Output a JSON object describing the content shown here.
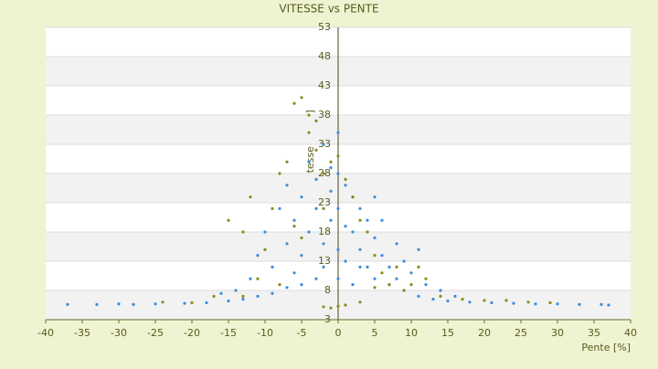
{
  "chart_data": {
    "type": "scatter",
    "title": "VITESSE vs PENTE",
    "x_label": "Pente [%]",
    "y_label": "Vitesse [km/h]",
    "xlim": [
      -40,
      40
    ],
    "xticks": [
      -40,
      -35,
      -30,
      -25,
      -20,
      -15,
      -10,
      -5,
      0,
      5,
      10,
      15,
      20,
      25,
      30,
      35,
      40
    ],
    "ylim": [
      3,
      53
    ],
    "yticks": [
      3,
      8,
      13,
      18,
      23,
      28,
      33,
      38,
      43,
      48,
      53
    ],
    "grid": true,
    "series": [
      {
        "color": "#3a8ede",
        "x": [
          -37,
          -33,
          -30,
          -28,
          -25,
          -21,
          -18,
          -15,
          -13,
          -11,
          -9,
          -7,
          -5,
          -3,
          -2,
          37,
          36,
          33,
          30,
          27,
          24,
          21,
          18,
          15,
          13,
          11,
          9,
          7,
          5,
          3,
          -14,
          -12,
          -11,
          -10,
          -9,
          -8,
          -7,
          -7,
          -6,
          -6,
          -5,
          -5,
          -4,
          -4,
          -3,
          -3,
          -2,
          -2,
          -1,
          -1,
          -1,
          0,
          0,
          0,
          0,
          0,
          1,
          1,
          1,
          2,
          2,
          2,
          3,
          3,
          4,
          4,
          5,
          5,
          6,
          6,
          7,
          8,
          8,
          9,
          10,
          11,
          12,
          14,
          -16,
          16
        ],
        "values": [
          5.6,
          5.6,
          5.7,
          5.6,
          5.7,
          5.8,
          5.9,
          6.2,
          6.5,
          7,
          7.5,
          8.5,
          9,
          10,
          12,
          5.5,
          5.6,
          5.6,
          5.7,
          5.7,
          5.8,
          5.9,
          6,
          6.2,
          6.5,
          7,
          8,
          9,
          10,
          12,
          8,
          10,
          14,
          18,
          12,
          22,
          16,
          26,
          20,
          11,
          24,
          14,
          30,
          18,
          22,
          27,
          33,
          16,
          25,
          20,
          29,
          35,
          28,
          22,
          15,
          10,
          26,
          19,
          13,
          24,
          18,
          9,
          22,
          15,
          20,
          12,
          17,
          24,
          14,
          20,
          12,
          16,
          10,
          13,
          11,
          15,
          9,
          8,
          7.5,
          7
        ]
      },
      {
        "color": "#8c8c1c",
        "x": [
          -5,
          -6,
          -4,
          -3,
          -4,
          -12,
          -15,
          -13,
          -10,
          -8,
          -9,
          -7,
          -6,
          -11,
          -13,
          -20,
          -24,
          -17,
          -3,
          -2,
          -1,
          0,
          -1,
          1,
          2,
          3,
          4,
          5,
          6,
          7,
          8,
          9,
          10,
          12,
          14,
          17,
          20,
          23,
          26,
          29,
          -2,
          0,
          3,
          -5,
          1,
          -2,
          5,
          -8,
          11
        ],
        "values": [
          41,
          40,
          38,
          37,
          35,
          24,
          20,
          18,
          15,
          28,
          22,
          30,
          19,
          10,
          7,
          5.9,
          6,
          7,
          32,
          28,
          30,
          31,
          5,
          5.5,
          24,
          20,
          18,
          14,
          11,
          9,
          12,
          8,
          9,
          10,
          7,
          6.5,
          6.3,
          6.3,
          6,
          5.9,
          5.2,
          5.3,
          6,
          17,
          27,
          22,
          8.5,
          9,
          12
        ]
      }
    ]
  }
}
